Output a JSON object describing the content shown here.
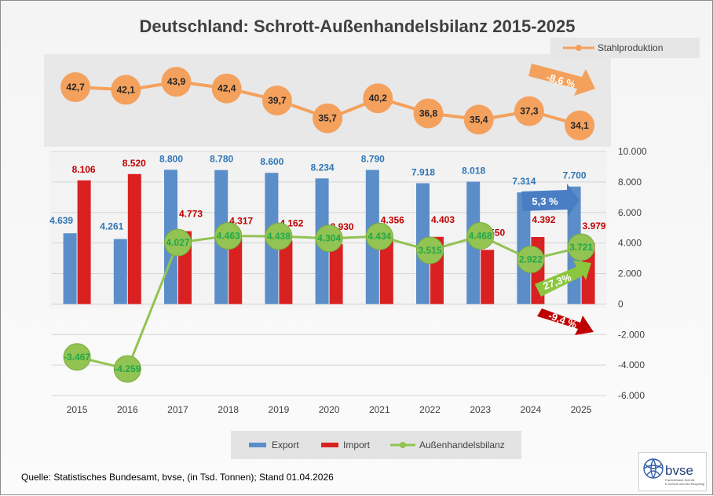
{
  "chart_data": {
    "type": "bar",
    "title": "Deutschland: Schrott-Außenhandelsbilanz 2015-2025",
    "categories": [
      "2015",
      "2016",
      "2017",
      "2018",
      "2019",
      "2020",
      "2021",
      "2022",
      "2023",
      "2024",
      "2025"
    ],
    "ylim": [
      -6000,
      10000
    ],
    "yticks": [
      "-6.000",
      "-4.000",
      "-2.000",
      "0",
      "2.000",
      "4.000",
      "6.000",
      "8.000",
      "10.000"
    ],
    "ytick_values": [
      -6000,
      -4000,
      -2000,
      0,
      2000,
      4000,
      6000,
      8000,
      10000
    ],
    "grid": true,
    "legend_position": "bottom",
    "series": [
      {
        "name": "Export",
        "kind": "bar",
        "color": "#5b8ec9",
        "label_color": "#2e75b6",
        "values": [
          4639,
          4261,
          8800,
          8780,
          8600,
          8234,
          8790,
          7918,
          8018,
          7314,
          7700
        ],
        "labels": [
          "4.639",
          "4.261",
          "8.800",
          "8.780",
          "8.600",
          "8.234",
          "8.790",
          "7.918",
          "8.018",
          "7.314",
          "7.700"
        ]
      },
      {
        "name": "Import",
        "kind": "bar",
        "color": "#d92121",
        "label_color": "#c00000",
        "values": [
          8106,
          8520,
          4773,
          4317,
          4162,
          3930,
          4356,
          4403,
          3550,
          4392,
          3979
        ],
        "labels": [
          "8.106",
          "8.520",
          "4.773",
          "4.317",
          "4.162",
          "3.930",
          "4.356",
          "4.403",
          "3.550",
          "4.392",
          "3.979"
        ]
      },
      {
        "name": "Außenhandelsbilanz",
        "kind": "line",
        "color": "#92c353",
        "label_color": "#22a84a",
        "values": [
          -3467,
          -4259,
          4027,
          4463,
          4438,
          4304,
          4434,
          3515,
          4468,
          2922,
          3721
        ],
        "labels": [
          "-3.467",
          "-4.259",
          "4.027",
          "4.463",
          "4.438",
          "4.304",
          "4.434",
          "3.515",
          "4.468",
          "2.922",
          "3.721"
        ]
      }
    ],
    "inset": {
      "name": "Stahlproduktion",
      "color": "#f4a15d",
      "values": [
        42.7,
        42.1,
        43.9,
        42.4,
        39.7,
        35.7,
        40.2,
        36.8,
        35.4,
        37.3,
        34.1
      ],
      "labels": [
        "42,7",
        "42,1",
        "43,9",
        "42,4",
        "39,7",
        "35,7",
        "40,2",
        "36,8",
        "35,4",
        "37,3",
        "34,1"
      ]
    },
    "annotations": [
      {
        "text": "-8,6 %",
        "color": "#f4a15d"
      },
      {
        "text": "5,3 %",
        "color": "#4a7ec4"
      },
      {
        "text": "27,3%",
        "color": "#8cc63f"
      },
      {
        "text": "-9,4 %",
        "color": "#c00000"
      }
    ],
    "source": "Quelle: Statistisches Bundesamt, bvse, (in Tsd. Tonnen); Stand 01.04.2026"
  },
  "logo": {
    "name": "bvse",
    "subtitle": "Fachverband Schrott, E-Schrott und Kfz-Recycling"
  }
}
